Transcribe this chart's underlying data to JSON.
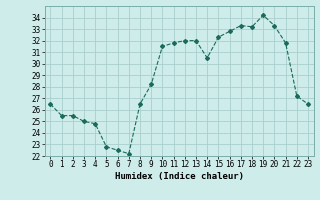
{
  "x": [
    0,
    1,
    2,
    3,
    4,
    5,
    6,
    7,
    8,
    9,
    10,
    11,
    12,
    13,
    14,
    15,
    16,
    17,
    18,
    19,
    20,
    21,
    22,
    23
  ],
  "y": [
    26.5,
    25.5,
    25.5,
    25.0,
    24.8,
    22.8,
    22.5,
    22.2,
    26.5,
    28.2,
    31.5,
    31.8,
    32.0,
    32.0,
    30.5,
    32.3,
    32.8,
    33.3,
    33.2,
    34.2,
    33.3,
    31.8,
    27.2,
    26.5
  ],
  "line_color": "#1a6b5a",
  "marker": "D",
  "marker_size": 2,
  "bg_color": "#ceecea",
  "grid_color": "#aacfcc",
  "xlabel": "Humidex (Indice chaleur)",
  "ylim": [
    22,
    35
  ],
  "xlim": [
    -0.5,
    23.5
  ],
  "yticks": [
    22,
    23,
    24,
    25,
    26,
    27,
    28,
    29,
    30,
    31,
    32,
    33,
    34
  ],
  "xticks": [
    0,
    1,
    2,
    3,
    4,
    5,
    6,
    7,
    8,
    9,
    10,
    11,
    12,
    13,
    14,
    15,
    16,
    17,
    18,
    19,
    20,
    21,
    22,
    23
  ],
  "label_fontsize": 6.5,
  "tick_fontsize": 5.5
}
